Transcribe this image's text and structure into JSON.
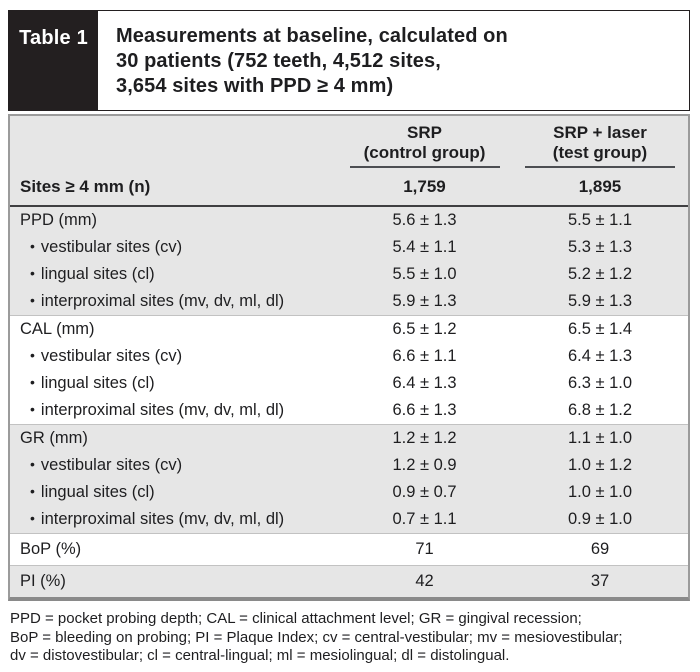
{
  "table": {
    "tag": "Table 1",
    "title_lines": [
      "Measurements at baseline, calculated on",
      "30 patients (752 teeth, 4,512 sites,",
      "3,654 sites with PPD ≥ 4 mm)"
    ],
    "columns": [
      {
        "line1": "SRP",
        "line2": "(control group)"
      },
      {
        "line1": "SRP + laser",
        "line2": "(test group)"
      }
    ],
    "sites_row": {
      "label": "Sites ≥ 4 mm (n)",
      "values": [
        "1,759",
        "1,895"
      ]
    },
    "bullet": "•",
    "groups": [
      {
        "shaded": true,
        "rows": [
          {
            "label": "PPD (mm)",
            "sub": false,
            "values": [
              "5.6 ± 1.3",
              "5.5 ± 1.1"
            ]
          },
          {
            "label": "vestibular sites (cv)",
            "sub": true,
            "values": [
              "5.4 ± 1.1",
              "5.3 ± 1.3"
            ]
          },
          {
            "label": "lingual sites (cl)",
            "sub": true,
            "values": [
              "5.5 ± 1.0",
              "5.2 ± 1.2"
            ]
          },
          {
            "label": "interproximal sites (mv, dv, ml, dl)",
            "sub": true,
            "values": [
              "5.9 ± 1.3",
              "5.9 ± 1.3"
            ]
          }
        ]
      },
      {
        "shaded": false,
        "rows": [
          {
            "label": "CAL (mm)",
            "sub": false,
            "values": [
              "6.5 ± 1.2",
              "6.5 ± 1.4"
            ]
          },
          {
            "label": "vestibular sites (cv)",
            "sub": true,
            "values": [
              "6.6 ± 1.1",
              "6.4 ± 1.3"
            ]
          },
          {
            "label": "lingual sites (cl)",
            "sub": true,
            "values": [
              "6.4 ± 1.3",
              "6.3 ± 1.0"
            ]
          },
          {
            "label": "interproximal sites (mv, dv, ml, dl)",
            "sub": true,
            "values": [
              "6.6 ± 1.3",
              "6.8 ± 1.2"
            ]
          }
        ]
      },
      {
        "shaded": true,
        "rows": [
          {
            "label": "GR (mm)",
            "sub": false,
            "values": [
              "1.2 ± 1.2",
              "1.1 ± 1.0"
            ]
          },
          {
            "label": "vestibular sites (cv)",
            "sub": true,
            "values": [
              "1.2 ± 0.9",
              "1.0 ± 1.2"
            ]
          },
          {
            "label": "lingual sites (cl)",
            "sub": true,
            "values": [
              "0.9 ± 0.7",
              "1.0 ± 1.0"
            ]
          },
          {
            "label": "interproximal sites (mv, dv, ml, dl)",
            "sub": true,
            "values": [
              "0.7 ± 1.1",
              "0.9 ± 1.0"
            ]
          }
        ]
      },
      {
        "shaded": false,
        "rows": [
          {
            "label": "BoP (%)",
            "sub": false,
            "values": [
              "71",
              "69"
            ]
          }
        ]
      },
      {
        "shaded": true,
        "rows": [
          {
            "label": "PI (%)",
            "sub": false,
            "values": [
              "42",
              "37"
            ]
          }
        ]
      }
    ],
    "footnote_lines": [
      "PPD = pocket probing depth; CAL = clinical attachment level; GR = gingival recession;",
      "BoP = bleeding on probing; PI = Plaque Index; cv = central-vestibular; mv = mesiovestibular;",
      "dv = distovestibular; cl = central-lingual; ml = mesiolingual; dl = distolingual."
    ],
    "colors": {
      "tag_bg": "#231f20",
      "shaded_row_bg": "#e6e6e6",
      "outer_border": "#9b9b9b",
      "dark_rule": "#3f3f41"
    }
  }
}
